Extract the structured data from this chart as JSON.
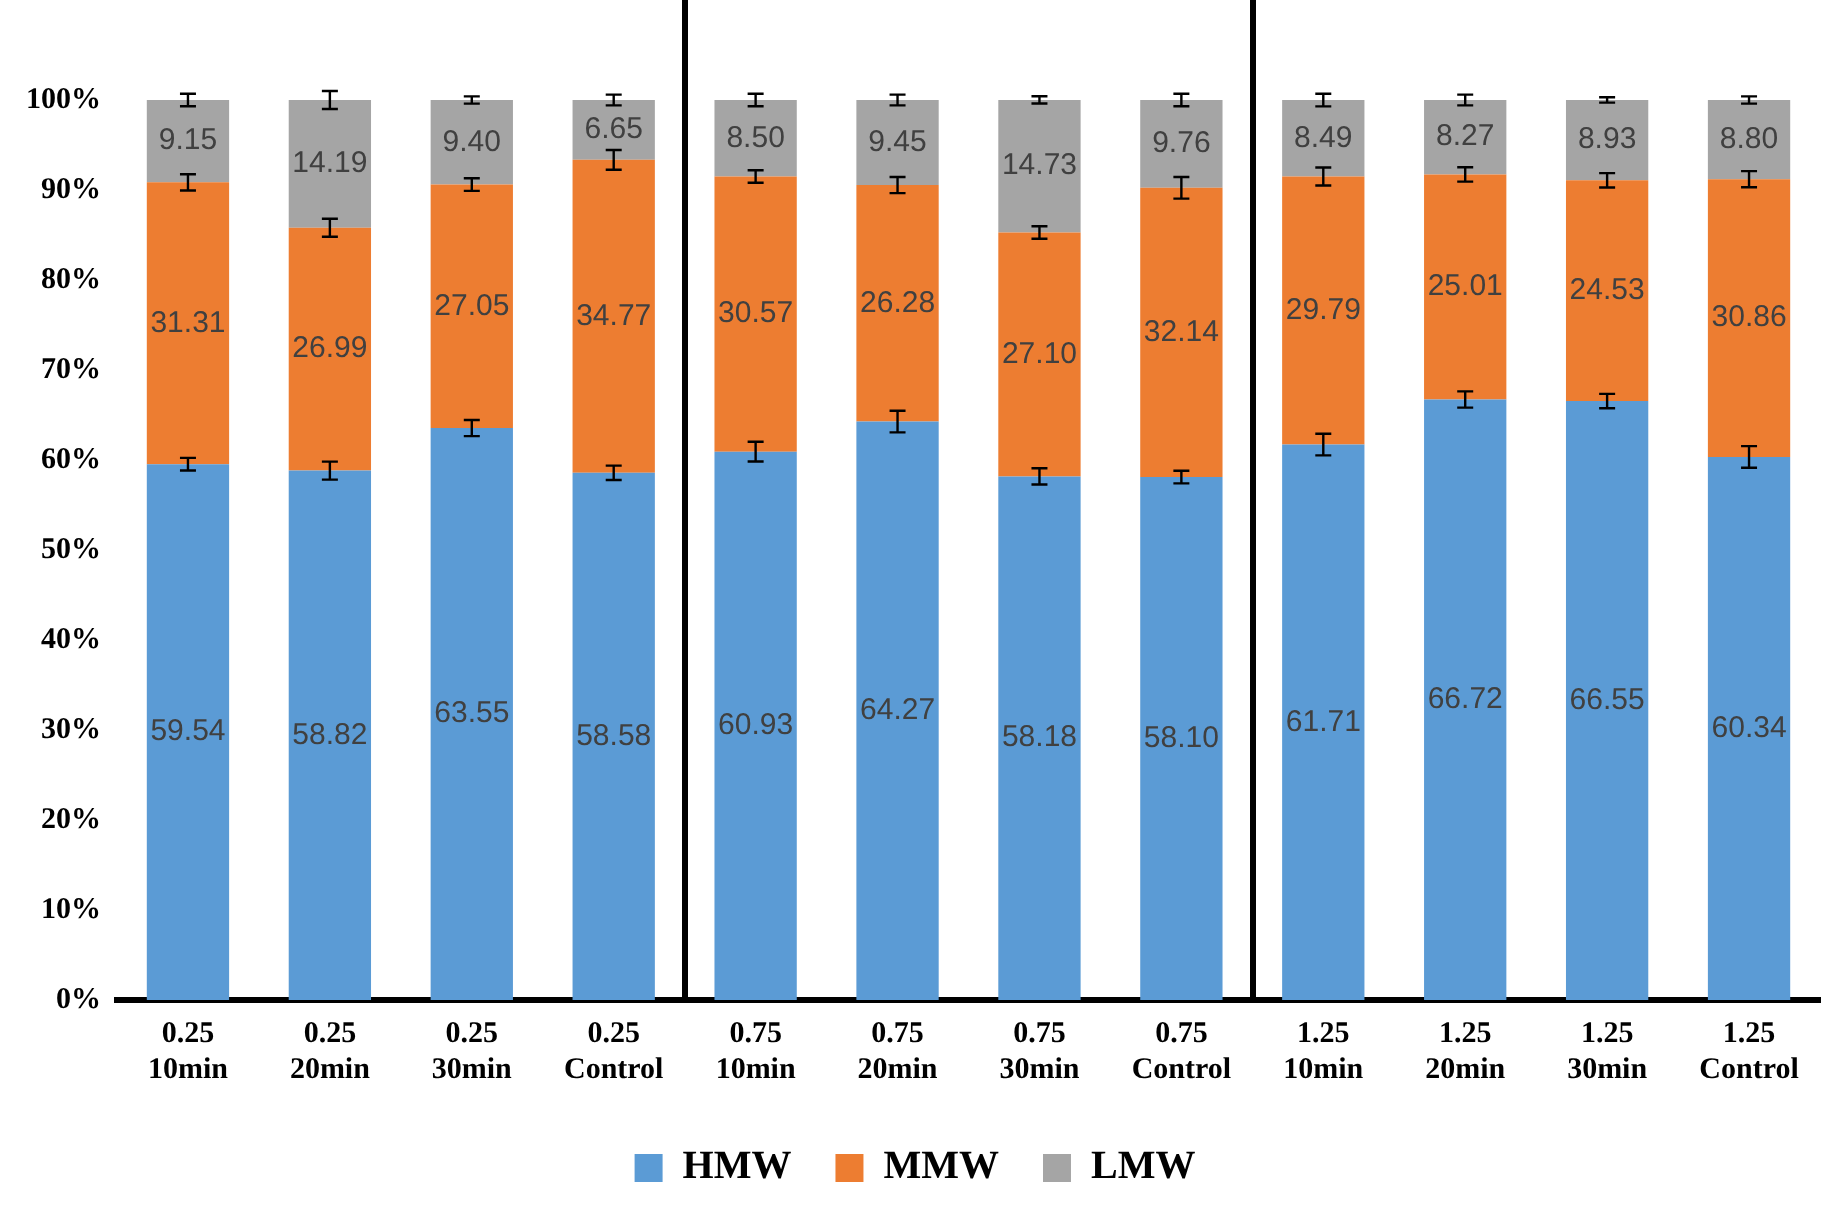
{
  "chart_data": {
    "type": "bar",
    "stacked": true,
    "categories": [
      "0.25\n10min",
      "0.25\n20min",
      "0.25\n30min",
      "0.25\nControl",
      "0.75\n10min",
      "0.75\n20min",
      "0.75\n30min",
      "0.75\nControl",
      "1.25\n10min",
      "1.25\n20min",
      "1.25\n30min",
      "1.25\nControl"
    ],
    "series": [
      {
        "name": "HMW",
        "color": "#5b9bd5",
        "values": [
          59.54,
          58.82,
          63.55,
          58.58,
          60.93,
          64.27,
          58.18,
          58.1,
          61.71,
          66.72,
          66.55,
          60.34
        ],
        "errors": [
          0.7,
          1.0,
          0.9,
          0.8,
          1.1,
          1.2,
          0.9,
          0.7,
          1.2,
          0.9,
          0.8,
          1.2
        ],
        "value_labels": [
          "59.54",
          "58.82",
          "63.55",
          "58.58",
          "60.93",
          "64.27",
          "58.18",
          "58.10",
          "61.71",
          "66.72",
          "66.55",
          "60.34"
        ]
      },
      {
        "name": "MMW",
        "color": "#ed7d31",
        "values": [
          31.31,
          26.99,
          27.05,
          34.77,
          30.57,
          26.28,
          27.1,
          32.14,
          29.79,
          25.01,
          24.53,
          30.86
        ],
        "errors": [
          0.9,
          1.0,
          0.7,
          1.1,
          0.7,
          0.9,
          0.7,
          1.2,
          1.0,
          0.8,
          0.8,
          0.9
        ],
        "value_labels": [
          "31.31",
          "26.99",
          "27.05",
          "34.77",
          "30.57",
          "26.28",
          "27.10",
          "32.14",
          "29.79",
          "25.01",
          "24.53",
          "30.86"
        ]
      },
      {
        "name": "LMW",
        "color": "#a5a5a5",
        "values": [
          9.15,
          14.19,
          9.4,
          6.65,
          8.5,
          9.45,
          14.73,
          9.76,
          8.49,
          8.27,
          8.93,
          8.8
        ],
        "errors": [
          0.7,
          1.0,
          0.4,
          0.6,
          0.7,
          0.6,
          0.4,
          0.7,
          0.7,
          0.6,
          0.3,
          0.4
        ],
        "value_labels": [
          "9.15",
          "14.19",
          "9.40",
          "6.65",
          "8.50",
          "9.45",
          "14.73",
          "9.76",
          "8.49",
          "8.27",
          "8.93",
          "8.80"
        ]
      }
    ],
    "ylim": [
      0,
      100
    ],
    "yticks": [
      {
        "value": 0,
        "label": "0%"
      },
      {
        "value": 10,
        "label": "10%"
      },
      {
        "value": 20,
        "label": "20%"
      },
      {
        "value": 30,
        "label": "30%"
      },
      {
        "value": 40,
        "label": "40%"
      },
      {
        "value": 50,
        "label": "50%"
      },
      {
        "value": 60,
        "label": "60%"
      },
      {
        "value": 70,
        "label": "70%"
      },
      {
        "value": 80,
        "label": "80%"
      },
      {
        "value": 90,
        "label": "90%"
      },
      {
        "value": 100,
        "label": "100%"
      }
    ],
    "grid": false,
    "legend": "bottom"
  }
}
